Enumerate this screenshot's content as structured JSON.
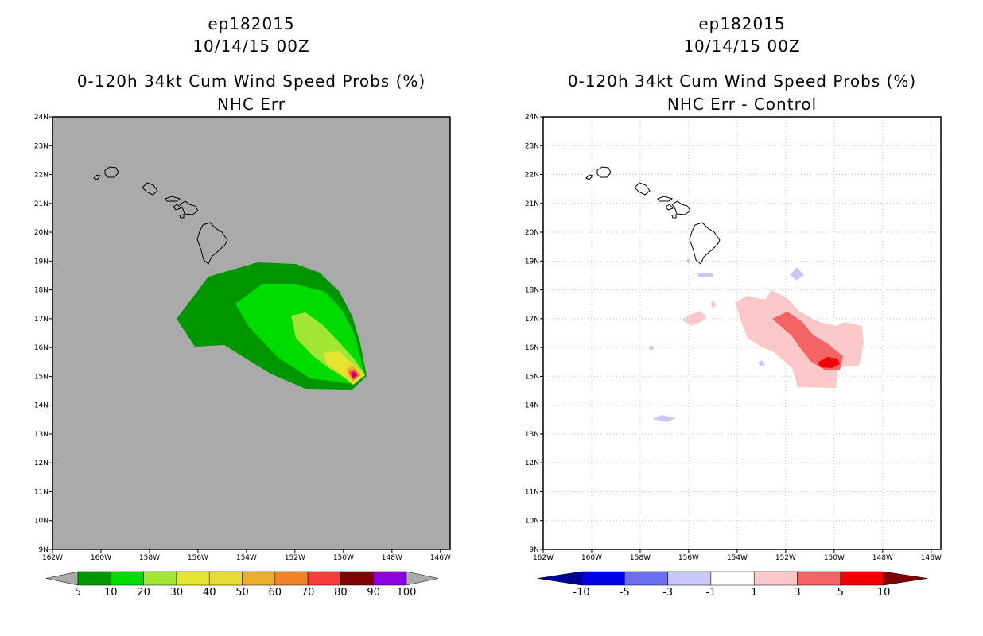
{
  "left_panel": {
    "title_storm": "ep182015",
    "title_date": "10/14/15 00Z",
    "title_product": "0-120h 34kt Cum Wind Speed Probs (%)",
    "title_subtitle": "NHC Err",
    "colorbar": {
      "labels": [
        "5",
        "10",
        "20",
        "30",
        "40",
        "50",
        "60",
        "70",
        "80",
        "90",
        "100"
      ],
      "colors": [
        "#009600",
        "#00dc00",
        "#a0e632",
        "#e6e632",
        "#e6dc32",
        "#e6af2d",
        "#f08228",
        "#fa3c3c",
        "#820000",
        "#8c00dc"
      ],
      "end_color": "#aaaaaa"
    },
    "background_color": "#aaaaaa"
  },
  "right_panel": {
    "title_storm": "ep182015",
    "title_date": "10/14/15 00Z",
    "title_product": "0-120h 34kt Cum Wind Speed Probs (%)",
    "title_subtitle": "NHC Err - Control",
    "colorbar": {
      "labels": [
        "-10",
        "-5",
        "-3",
        "-1",
        "1",
        "3",
        "5",
        "10"
      ],
      "colors": [
        "#0000e6",
        "#6e6ef0",
        "#c8c8f8",
        "#ffffff",
        "#fac8c8",
        "#f56464",
        "#f00000"
      ],
      "end_left_color": "#000096",
      "end_right_color": "#800000"
    }
  },
  "map": {
    "lat_labels": [
      "9N",
      "10N",
      "11N",
      "12N",
      "13N",
      "14N",
      "15N",
      "16N",
      "17N",
      "18N",
      "19N",
      "20N",
      "21N",
      "22N",
      "23N",
      "24N"
    ],
    "lon_labels": [
      "162W",
      "160W",
      "158W",
      "156W",
      "154W",
      "152W",
      "150W",
      "148W",
      "146W"
    ]
  }
}
